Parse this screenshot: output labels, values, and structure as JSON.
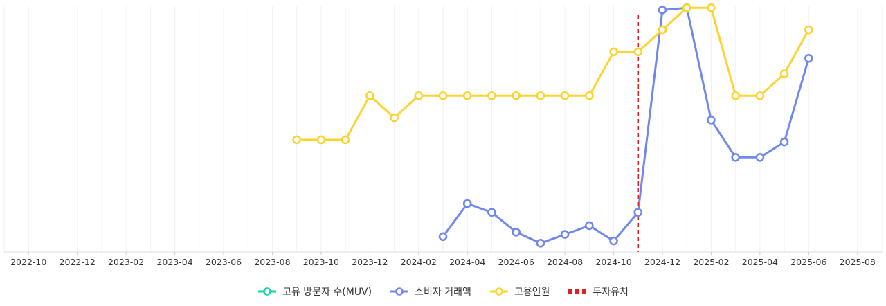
{
  "chart_data": {
    "type": "line",
    "x_ticks": [
      "2022-10",
      "2022-12",
      "2023-02",
      "2023-04",
      "2023-06",
      "2023-08",
      "2023-10",
      "2023-12",
      "2024-02",
      "2024-04",
      "2024-06",
      "2024-08",
      "2024-10",
      "2024-12",
      "2025-02",
      "2025-04",
      "2025-06",
      "2025-08"
    ],
    "series": [
      {
        "name": "고유 방문자 수(MUV)",
        "color": "#19d3a2",
        "points": []
      },
      {
        "name": "소비자 거래액",
        "color": "#7088ec",
        "points": [
          {
            "x": "2024-03",
            "y": 7
          },
          {
            "x": "2024-04",
            "y": 22
          },
          {
            "x": "2024-05",
            "y": 18
          },
          {
            "x": "2024-06",
            "y": 9
          },
          {
            "x": "2024-07",
            "y": 4
          },
          {
            "x": "2024-08",
            "y": 8
          },
          {
            "x": "2024-09",
            "y": 12
          },
          {
            "x": "2024-10",
            "y": 5
          },
          {
            "x": "2024-11",
            "y": 18
          },
          {
            "x": "2024-12",
            "y": 110
          },
          {
            "x": "2025-01",
            "y": 111
          },
          {
            "x": "2025-02",
            "y": 60
          },
          {
            "x": "2025-03",
            "y": 43
          },
          {
            "x": "2025-04",
            "y": 43
          },
          {
            "x": "2025-05",
            "y": 50
          },
          {
            "x": "2025-06",
            "y": 88
          }
        ]
      },
      {
        "name": "고용인원",
        "color": "#fdd32f",
        "points": [
          {
            "x": "2023-09",
            "y": 51
          },
          {
            "x": "2023-10",
            "y": 51
          },
          {
            "x": "2023-11",
            "y": 51
          },
          {
            "x": "2023-12",
            "y": 71
          },
          {
            "x": "2024-01",
            "y": 61
          },
          {
            "x": "2024-02",
            "y": 71
          },
          {
            "x": "2024-03",
            "y": 71
          },
          {
            "x": "2024-04",
            "y": 71
          },
          {
            "x": "2024-05",
            "y": 71
          },
          {
            "x": "2024-06",
            "y": 71
          },
          {
            "x": "2024-07",
            "y": 71
          },
          {
            "x": "2024-08",
            "y": 71
          },
          {
            "x": "2024-09",
            "y": 71
          },
          {
            "x": "2024-10",
            "y": 91
          },
          {
            "x": "2024-11",
            "y": 91
          },
          {
            "x": "2024-12",
            "y": 101
          },
          {
            "x": "2025-01",
            "y": 111
          },
          {
            "x": "2025-02",
            "y": 111
          },
          {
            "x": "2025-03",
            "y": 71
          },
          {
            "x": "2025-04",
            "y": 71
          },
          {
            "x": "2025-05",
            "y": 81
          },
          {
            "x": "2025-06",
            "y": 101
          }
        ]
      }
    ],
    "events": [
      {
        "name": "투자유치",
        "x": "2024-11",
        "color": "#e02020",
        "style": "dashed"
      }
    ],
    "x_range": [
      "2022-09",
      "2025-09"
    ],
    "y_range": [
      0,
      112
    ],
    "grid": "vertical",
    "legend_position": "bottom-center",
    "y_axis_visible": false
  }
}
